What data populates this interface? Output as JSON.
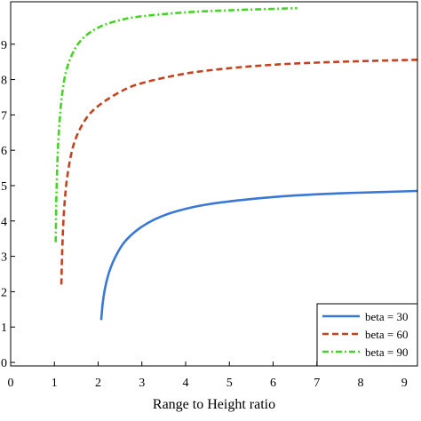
{
  "chart_data": {
    "type": "line",
    "xlabel": "Range to Height ratio",
    "ylabel": "",
    "xlim": [
      0,
      9.3
    ],
    "ylim": [
      -0.1,
      10.2
    ],
    "x_ticks": [
      0,
      1,
      2,
      3,
      4,
      5,
      6,
      7,
      8,
      9
    ],
    "x_tick_labels": [
      "0",
      "1",
      "2",
      "3",
      "4",
      "5",
      "6",
      "7",
      "8",
      "9"
    ],
    "y_ticks": [
      0,
      1,
      2,
      3,
      4,
      5,
      6,
      7,
      8,
      9
    ],
    "y_tick_labels": [
      "0",
      "1",
      "2",
      "3",
      "4",
      "5",
      "6",
      "7",
      "8",
      "9"
    ],
    "grid": false,
    "legend_position": "bottom-right",
    "series": [
      {
        "name": "beta = 30",
        "color": "#3a78d6",
        "dash": "solid",
        "x": [
          2.07,
          2.1,
          2.15,
          2.25,
          2.4,
          2.6,
          2.9,
          3.3,
          3.8,
          4.5,
          5.5,
          6.5,
          7.5,
          8.5,
          9.3
        ],
        "y": [
          1.2,
          1.62,
          2.05,
          2.55,
          3.0,
          3.4,
          3.75,
          4.05,
          4.28,
          4.47,
          4.62,
          4.72,
          4.78,
          4.82,
          4.85
        ]
      },
      {
        "name": "beta = 60",
        "color": "#c4431f",
        "dash": "dashed",
        "x": [
          1.16,
          1.18,
          1.22,
          1.3,
          1.45,
          1.7,
          2.0,
          2.5,
          3.0,
          4.0,
          5.0,
          6.0,
          7.0,
          8.0,
          9.3
        ],
        "y": [
          2.2,
          3.2,
          4.3,
          5.3,
          6.2,
          6.85,
          7.25,
          7.65,
          7.9,
          8.17,
          8.32,
          8.42,
          8.48,
          8.52,
          8.56
        ]
      },
      {
        "name": "beta = 90",
        "color": "#44d422",
        "dash": "dashdot",
        "x": [
          1.03,
          1.05,
          1.1,
          1.2,
          1.35,
          1.6,
          2.0,
          2.5,
          3.0,
          4.0,
          5.0,
          6.0,
          6.55
        ],
        "y": [
          3.4,
          4.9,
          6.5,
          7.8,
          8.55,
          9.1,
          9.47,
          9.68,
          9.79,
          9.9,
          9.96,
          10.0,
          10.02
        ]
      }
    ]
  }
}
